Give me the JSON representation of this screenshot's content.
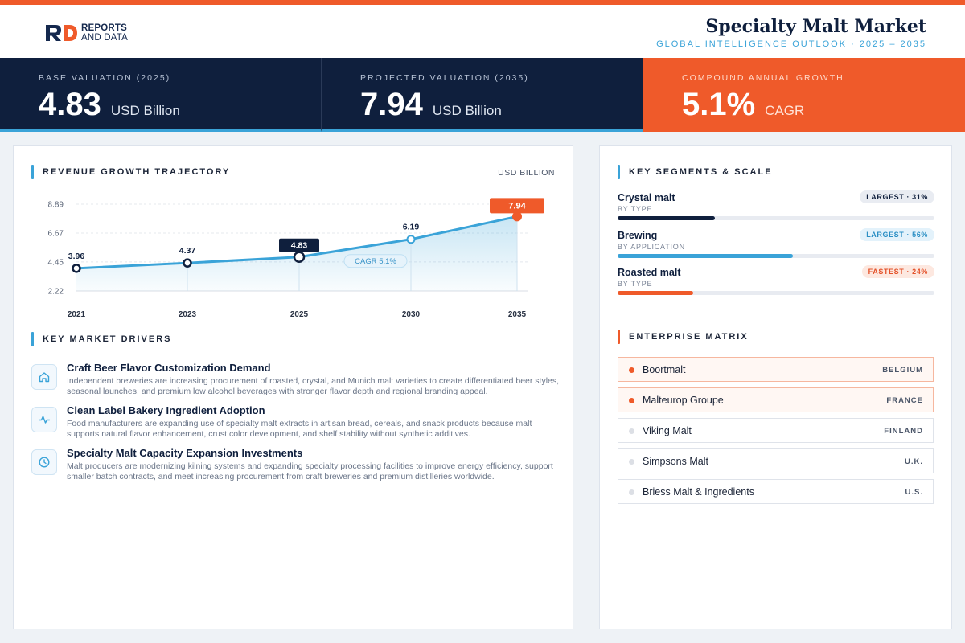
{
  "brand": {
    "line1": "REPORTS",
    "line2": "AND DATA",
    "colors": {
      "accent": "#ef5a2a",
      "navy": "#0f1f3d",
      "blue": "#3aa3d8"
    }
  },
  "header": {
    "title": "Specialty Malt Market",
    "subtitle": "GLOBAL INTELLIGENCE OUTLOOK · 2025 – 2035"
  },
  "kpis": [
    {
      "label": "BASE VALUATION (2025)",
      "value": "4.83",
      "unit": "USD Billion"
    },
    {
      "label": "PROJECTED VALUATION (2035)",
      "value": "7.94",
      "unit": "USD Billion"
    },
    {
      "label": "COMPOUND ANNUAL GROWTH",
      "value": "5.1%",
      "unit": "CAGR"
    }
  ],
  "chart_section": {
    "title": "REVENUE GROWTH TRAJECTORY",
    "unit": "USD BILLION"
  },
  "chart_data": {
    "type": "area",
    "title": "REVENUE GROWTH TRAJECTORY",
    "x": [
      "2021",
      "2023",
      "2025",
      "2030",
      "2035"
    ],
    "values": [
      3.96,
      4.37,
      4.83,
      6.19,
      7.94
    ],
    "labels": [
      "3.96",
      "4.37",
      "4.83",
      "6.19",
      "7.94"
    ],
    "y_ticks": [
      "2.22",
      "4.45",
      "6.67",
      "8.89"
    ],
    "ylim": [
      2.22,
      8.89
    ],
    "annotation": "CAGR 5.1%",
    "highlighted": [
      "2025",
      "2035"
    ],
    "grid": true
  },
  "drivers_section": {
    "title": "KEY MARKET DRIVERS",
    "items": [
      {
        "icon": "home-icon",
        "title": "Craft Beer Flavor Customization Demand",
        "desc": "Independent breweries are increasing procurement of roasted, crystal, and Munich malt varieties to create differentiated beer styles, seasonal launches, and premium low alcohol beverages with stronger flavor depth and regional branding appeal."
      },
      {
        "icon": "pulse-icon",
        "title": "Clean Label Bakery Ingredient Adoption",
        "desc": "Food manufacturers are expanding use of specialty malt extracts in artisan bread, cereals, and snack products because malt supports natural flavor enhancement, crust color development, and shelf stability without synthetic additives."
      },
      {
        "icon": "clock-icon",
        "title": "Specialty Malt Capacity Expansion Investments",
        "desc": "Malt producers are modernizing kilning systems and expanding specialty processing facilities to improve energy efficiency, support smaller batch contracts, and meet increasing procurement from craft breweries and premium distilleries worldwide."
      }
    ]
  },
  "segments_section": {
    "title": "KEY SEGMENTS & SCALE",
    "items": [
      {
        "name": "Crystal malt",
        "sub": "BY TYPE",
        "badge": "LARGEST · 31%",
        "share": 0.31,
        "color": "#0f1f3d"
      },
      {
        "name": "Brewing",
        "sub": "BY APPLICATION",
        "badge": "LARGEST · 56%",
        "share": 0.56,
        "color": "#3aa3d8"
      },
      {
        "name": "Roasted malt",
        "sub": "BY TYPE",
        "badge": "FASTEST · 24%",
        "share": 0.24,
        "color": "#ef5a2a"
      }
    ]
  },
  "enterprise_section": {
    "title": "ENTERPRISE MATRIX",
    "items": [
      {
        "name": "Boortmalt",
        "country": "BELGIUM",
        "highlight": true
      },
      {
        "name": "Malteurop Groupe",
        "country": "FRANCE",
        "highlight": true
      },
      {
        "name": "Viking Malt",
        "country": "FINLAND",
        "highlight": false
      },
      {
        "name": "Simpsons Malt",
        "country": "U.K.",
        "highlight": false
      },
      {
        "name": "Briess Malt & Ingredients",
        "country": "U.S.",
        "highlight": false
      }
    ]
  }
}
